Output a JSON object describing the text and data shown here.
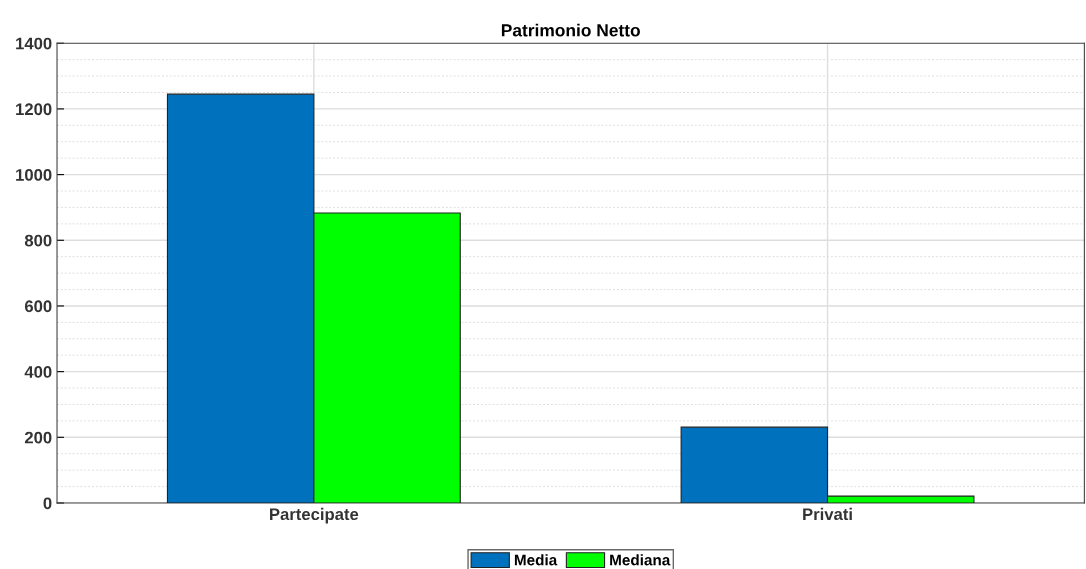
{
  "chart_data": {
    "type": "bar",
    "title": "Patrimonio Netto",
    "categories": [
      "Partecipate",
      "Privati"
    ],
    "series": [
      {
        "name": "Media",
        "color": "#0072bd",
        "values": [
          1245,
          231
        ]
      },
      {
        "name": "Mediana",
        "color": "#00ff00",
        "values": [
          883,
          21
        ]
      }
    ],
    "ylim": [
      0,
      1400
    ],
    "yticks": [
      0,
      200,
      400,
      600,
      800,
      1000,
      1200,
      1400
    ],
    "grid": true,
    "legend": "bottom"
  }
}
